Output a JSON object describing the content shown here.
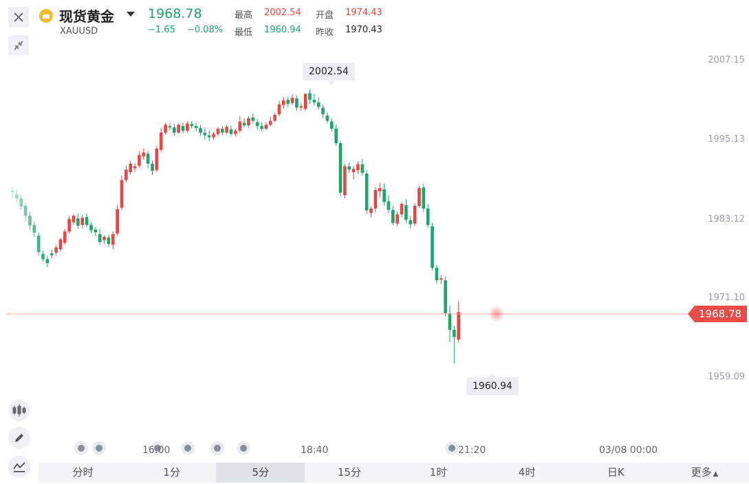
{
  "header": {
    "title": "现货黄金",
    "symbol": "XAUUSD",
    "price": "1968.78",
    "change": "−1.65",
    "change_pct": "−0.08%",
    "high_label": "最高",
    "high": "2002.54",
    "open_label": "开盘",
    "open": "1974.43",
    "low_label": "最低",
    "low": "1960.94",
    "prev_close_label": "昨收",
    "prev_close": "1970.43"
  },
  "icons": {
    "close": "close-icon",
    "collapse": "collapse-icon",
    "coin": "gold-coin-icon",
    "candle_tool": "candlestick-icon",
    "draw_tool": "pencil-icon",
    "indicator_tool": "indicator-icon"
  },
  "tabs": [
    "分时",
    "1分",
    "5分",
    "15分",
    "1时",
    "4时",
    "日K",
    "更多"
  ],
  "active_tab": "5分",
  "colors": {
    "up": "#e84545",
    "down": "#1ba56a",
    "accent_last": "#ec4c47",
    "brand_coin": "#f4b92f"
  },
  "chart_data": {
    "type": "candlestick",
    "y_ticks": [
      "2007.15",
      "1995.13",
      "1983.12",
      "1971.10",
      "1959.09"
    ],
    "x_ticks": [
      "16:00",
      "18:40",
      "21:20",
      "03/08 00:00"
    ],
    "high_marker": "2002.54",
    "low_marker": "1960.94",
    "last_price": "1968.78",
    "ylim": [
      1955.0,
      2011.0
    ],
    "candles": [
      [
        1987.2,
        1987.8,
        1986.0,
        1987.0
      ],
      [
        1986.6,
        1987.4,
        1985.4,
        1986.0
      ],
      [
        1986.0,
        1986.6,
        1984.3,
        1984.8
      ],
      [
        1984.9,
        1985.3,
        1982.5,
        1983.4
      ],
      [
        1983.4,
        1984.0,
        1981.2,
        1981.9
      ],
      [
        1982.0,
        1982.5,
        1980.2,
        1980.8
      ],
      [
        1980.4,
        1980.9,
        1977.3,
        1977.9
      ],
      [
        1977.6,
        1978.1,
        1976.5,
        1976.8
      ],
      [
        1976.8,
        1977.3,
        1975.6,
        1976.2
      ],
      [
        1977.7,
        1978.3,
        1976.9,
        1977.4
      ],
      [
        1977.8,
        1978.9,
        1977.3,
        1978.6
      ],
      [
        1978.3,
        1980.1,
        1978.0,
        1979.8
      ],
      [
        1979.3,
        1981.4,
        1979.0,
        1981.0
      ],
      [
        1981.0,
        1983.3,
        1980.7,
        1982.9
      ],
      [
        1982.4,
        1983.7,
        1982.0,
        1983.4
      ],
      [
        1983.0,
        1983.7,
        1981.4,
        1981.9
      ],
      [
        1982.0,
        1983.5,
        1981.5,
        1983.1
      ],
      [
        1983.2,
        1983.7,
        1981.7,
        1982.0
      ],
      [
        1982.0,
        1982.4,
        1980.8,
        1981.2
      ],
      [
        1981.3,
        1981.7,
        1980.3,
        1980.9
      ],
      [
        1980.6,
        1981.4,
        1979.0,
        1979.4
      ],
      [
        1979.7,
        1980.5,
        1979.1,
        1980.2
      ],
      [
        1980.1,
        1980.5,
        1978.7,
        1979.1
      ],
      [
        1979.0,
        1981.0,
        1978.3,
        1980.6
      ],
      [
        1980.7,
        1985.0,
        1980.4,
        1984.4
      ],
      [
        1984.6,
        1989.5,
        1984.2,
        1988.8
      ],
      [
        1988.8,
        1991.0,
        1988.4,
        1990.4
      ],
      [
        1990.0,
        1991.8,
        1989.6,
        1991.3
      ],
      [
        1990.6,
        1991.4,
        1990.1,
        1990.9
      ],
      [
        1991.0,
        1993.2,
        1990.7,
        1992.6
      ],
      [
        1992.4,
        1993.6,
        1991.9,
        1993.0
      ],
      [
        1992.8,
        1993.2,
        1990.6,
        1991.3
      ],
      [
        1991.3,
        1991.8,
        1989.6,
        1990.2
      ],
      [
        1990.3,
        1994.0,
        1990.0,
        1993.6
      ],
      [
        1993.4,
        1996.7,
        1993.1,
        1996.0
      ],
      [
        1996.0,
        1997.5,
        1995.7,
        1997.2
      ],
      [
        1997.0,
        1997.5,
        1996.4,
        1996.8
      ],
      [
        1996.8,
        1997.4,
        1995.6,
        1996.0
      ],
      [
        1996.0,
        1997.4,
        1995.8,
        1997.2
      ],
      [
        1997.0,
        1997.5,
        1995.9,
        1996.3
      ],
      [
        1996.3,
        1997.8,
        1996.0,
        1997.4
      ],
      [
        1997.3,
        1997.8,
        1996.6,
        1997.0
      ],
      [
        1997.0,
        1997.5,
        1996.2,
        1996.7
      ],
      [
        1996.7,
        1997.2,
        1995.5,
        1996.0
      ],
      [
        1996.0,
        1996.8,
        1995.0,
        1995.6
      ],
      [
        1995.6,
        1996.3,
        1994.7,
        1995.3
      ],
      [
        1995.3,
        1996.1,
        1994.9,
        1995.8
      ],
      [
        1995.8,
        1996.9,
        1995.5,
        1996.6
      ],
      [
        1996.6,
        1997.0,
        1995.6,
        1996.0
      ],
      [
        1996.0,
        1997.2,
        1995.7,
        1996.9
      ],
      [
        1996.5,
        1997.0,
        1995.5,
        1995.8
      ],
      [
        1995.8,
        1996.6,
        1995.4,
        1996.3
      ],
      [
        1996.3,
        1998.5,
        1996.0,
        1997.7
      ],
      [
        1997.5,
        1998.2,
        1996.8,
        1997.1
      ],
      [
        1997.1,
        1998.5,
        1996.8,
        1998.2
      ],
      [
        1998.3,
        1998.9,
        1997.4,
        1997.8
      ],
      [
        1997.6,
        1998.1,
        1996.5,
        1997.0
      ],
      [
        1997.0,
        1997.5,
        1996.3,
        1996.6
      ],
      [
        1996.6,
        1997.6,
        1996.4,
        1997.2
      ],
      [
        1997.2,
        1998.4,
        1996.9,
        1997.8
      ],
      [
        1997.8,
        1999.0,
        1997.6,
        1998.7
      ],
      [
        1998.8,
        2000.8,
        1998.5,
        2000.3
      ],
      [
        2000.2,
        2001.4,
        1999.7,
        2000.9
      ],
      [
        2001.0,
        2001.5,
        1999.9,
        2000.4
      ],
      [
        2000.5,
        2001.7,
        2000.2,
        2001.3
      ],
      [
        2001.2,
        2001.6,
        1999.3,
        1999.8
      ],
      [
        1999.8,
        2000.5,
        1999.3,
        2000.0
      ],
      [
        1999.6,
        2002.0,
        1999.3,
        2001.9
      ],
      [
        2002.0,
        2002.54,
        2000.4,
        2001.0
      ],
      [
        2001.0,
        2001.9,
        2000.1,
        2000.6
      ],
      [
        2000.6,
        2001.4,
        1999.5,
        1999.9
      ],
      [
        1999.8,
        2000.3,
        1998.2,
        1998.8
      ],
      [
        1998.6,
        1999.1,
        1997.4,
        1997.8
      ],
      [
        1997.7,
        1998.2,
        1996.2,
        1996.6
      ],
      [
        1996.6,
        1997.2,
        1994.0,
        1994.4
      ],
      [
        1994.4,
        1994.8,
        1986.4,
        1986.9
      ],
      [
        1986.5,
        1991.3,
        1986.0,
        1990.9
      ],
      [
        1990.9,
        1991.5,
        1989.9,
        1990.4
      ],
      [
        1990.0,
        1990.9,
        1988.9,
        1990.5
      ],
      [
        1990.3,
        1991.6,
        1989.7,
        1991.2
      ],
      [
        1991.2,
        1992.0,
        1989.5,
        1989.9
      ],
      [
        1989.8,
        1990.3,
        1983.7,
        1984.2
      ],
      [
        1983.8,
        1984.8,
        1983.1,
        1984.5
      ],
      [
        1984.5,
        1987.7,
        1983.9,
        1987.3
      ],
      [
        1987.1,
        1988.4,
        1986.2,
        1987.6
      ],
      [
        1987.4,
        1988.3,
        1985.0,
        1985.5
      ],
      [
        1985.6,
        1986.5,
        1983.8,
        1984.3
      ],
      [
        1984.3,
        1984.9,
        1982.0,
        1982.3
      ],
      [
        1982.2,
        1984.0,
        1981.8,
        1983.6
      ],
      [
        1983.6,
        1985.5,
        1983.2,
        1985.2
      ],
      [
        1985.0,
        1985.9,
        1982.3,
        1982.8
      ],
      [
        1982.7,
        1983.3,
        1981.5,
        1982.1
      ],
      [
        1982.2,
        1985.3,
        1981.9,
        1984.9
      ],
      [
        1984.9,
        1988.0,
        1984.6,
        1987.6
      ],
      [
        1987.7,
        1988.2,
        1984.0,
        1984.5
      ],
      [
        1984.5,
        1985.2,
        1981.6,
        1982.0
      ],
      [
        1981.8,
        1982.3,
        1975.1,
        1975.5
      ],
      [
        1975.5,
        1975.9,
        1973.1,
        1973.6
      ],
      [
        1973.7,
        1974.4,
        1973.0,
        1973.9
      ],
      [
        1973.6,
        1974.2,
        1968.1,
        1968.6
      ],
      [
        1968.6,
        1969.8,
        1964.2,
        1966.1
      ],
      [
        1966.1,
        1966.7,
        1960.94,
        1965.0
      ],
      [
        1964.6,
        1970.5,
        1964.2,
        1968.78
      ]
    ]
  }
}
